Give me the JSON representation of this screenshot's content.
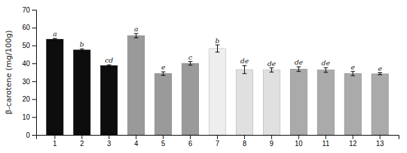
{
  "chart_data": {
    "type": "bar",
    "categories": [
      "1",
      "2",
      "3",
      "4",
      "5",
      "6",
      "7",
      "8",
      "9",
      "10",
      "11",
      "12",
      "13"
    ],
    "values": [
      53.5,
      47.5,
      38.8,
      55.5,
      34.3,
      40.0,
      48.3,
      36.5,
      36.3,
      36.8,
      36.3,
      34.3,
      34.2
    ],
    "errors": [
      0.5,
      0.6,
      0.4,
      1.2,
      1.0,
      1.0,
      2.0,
      2.2,
      1.2,
      1.3,
      1.3,
      1.2,
      0.6
    ],
    "colors": [
      "#0d0d0d",
      "#0d0d0d",
      "#0d0d0d",
      "#9a9a9a",
      "#9a9a9a",
      "#9a9a9a",
      "#eeeeee",
      "#e0e0e0",
      "#e0e0e0",
      "#aaaaaa",
      "#aaaaaa",
      "#aaaaaa",
      "#aaaaaa"
    ],
    "annotations": [
      "a",
      "b",
      "cd",
      "a",
      "e",
      "c",
      "b",
      "de",
      "de",
      "de",
      "de",
      "e",
      "e"
    ],
    "ylabel": "β-carotene (mg/100g)",
    "ylim": [
      0,
      70
    ],
    "yticks": [
      0,
      10,
      20,
      30,
      40,
      50,
      60,
      70
    ],
    "grid": false
  }
}
